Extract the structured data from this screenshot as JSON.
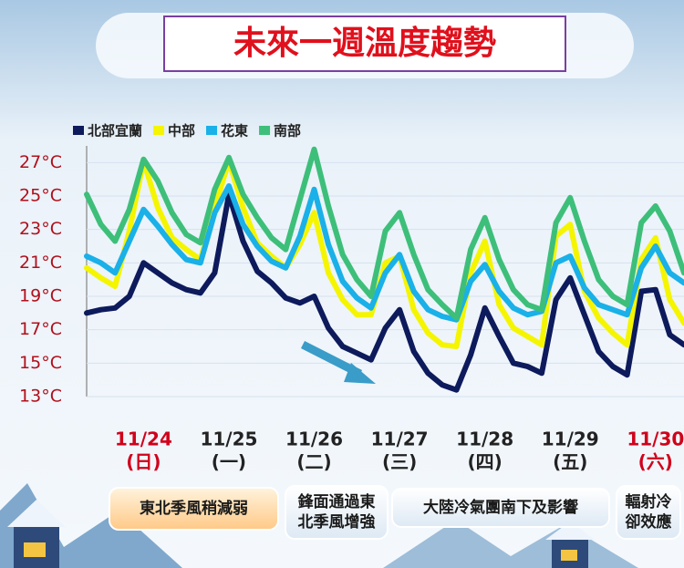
{
  "chart_data": {
    "type": "line",
    "title": "未來一週溫度趨勢",
    "categories": [
      null,
      null,
      null,
      null,
      "11/24",
      null,
      null,
      null,
      null,
      null,
      "11/25",
      null,
      null,
      null,
      null,
      null,
      "11/26",
      null,
      null,
      null,
      null,
      null,
      "11/27",
      null,
      null,
      null,
      null,
      null,
      "11/28",
      null,
      null,
      null,
      null,
      null,
      "11/29",
      null,
      null,
      null,
      null,
      null,
      "11/30",
      null,
      null
    ],
    "weekdays": [
      null,
      null,
      null,
      null,
      "(日)",
      null,
      null,
      null,
      null,
      null,
      "(一)",
      null,
      null,
      null,
      null,
      null,
      "(二)",
      null,
      null,
      null,
      null,
      null,
      "(三)",
      null,
      null,
      null,
      null,
      null,
      "(四)",
      null,
      null,
      null,
      null,
      null,
      "(五)",
      null,
      null,
      null,
      null,
      null,
      "(六)",
      null,
      null
    ],
    "x_label_colors": [
      null,
      null,
      null,
      null,
      "#d0021b",
      null,
      null,
      null,
      null,
      null,
      "#222222",
      null,
      null,
      null,
      null,
      null,
      "#222222",
      null,
      null,
      null,
      null,
      null,
      "#222222",
      null,
      null,
      null,
      null,
      null,
      "#222222",
      null,
      null,
      null,
      null,
      null,
      "#222222",
      null,
      null,
      null,
      null,
      null,
      "#d0021b",
      null,
      null
    ],
    "series": [
      {
        "name": "北部宜蘭",
        "color": "#0d1a5c",
        "values": [
          18.0,
          18.2,
          18.3,
          19.0,
          21.0,
          20.4,
          19.8,
          19.4,
          19.2,
          20.4,
          25.1,
          22.3,
          20.5,
          19.8,
          18.9,
          18.6,
          19.0,
          17.1,
          16.0,
          15.6,
          15.2,
          17.1,
          18.2,
          15.7,
          14.4,
          13.7,
          13.4,
          15.5,
          18.3,
          16.6,
          15.0,
          14.8,
          14.4,
          18.8,
          20.1,
          17.9,
          15.7,
          14.8,
          14.3,
          19.3,
          19.4,
          16.7,
          16.1
        ]
      },
      {
        "name": "中部",
        "color": "#f5f500",
        "values": [
          20.7,
          20.1,
          19.6,
          22.9,
          27.1,
          24.3,
          22.5,
          21.8,
          21.2,
          24.3,
          27.1,
          24.3,
          22.2,
          21.4,
          20.7,
          22.1,
          24.0,
          20.4,
          18.8,
          17.9,
          17.9,
          21.0,
          21.4,
          18.2,
          16.8,
          16.1,
          16.0,
          20.4,
          22.3,
          18.5,
          17.1,
          16.6,
          16.1,
          22.6,
          23.3,
          19.3,
          17.7,
          16.8,
          16.1,
          21.2,
          22.5,
          18.8,
          17.4
        ]
      },
      {
        "name": "花東",
        "color": "#1ab0e8",
        "values": [
          21.4,
          21.0,
          20.4,
          22.3,
          24.2,
          23.2,
          22.1,
          21.2,
          21.0,
          24.0,
          25.6,
          23.3,
          22.0,
          21.1,
          20.7,
          22.6,
          25.4,
          22.1,
          19.9,
          18.9,
          18.3,
          20.4,
          21.5,
          19.3,
          18.2,
          17.8,
          17.6,
          19.9,
          20.9,
          19.3,
          18.3,
          17.9,
          18.1,
          21.0,
          21.4,
          19.5,
          18.5,
          18.2,
          17.9,
          20.7,
          22.0,
          20.4,
          19.8
        ]
      },
      {
        "name": "南部",
        "color": "#3dbf7a",
        "values": [
          25.1,
          23.3,
          22.3,
          24.2,
          27.2,
          25.9,
          24.0,
          22.7,
          22.2,
          25.4,
          27.3,
          25.1,
          23.7,
          22.5,
          21.8,
          24.8,
          27.8,
          24.4,
          21.5,
          20.0,
          19.0,
          22.9,
          24.0,
          21.5,
          19.4,
          18.5,
          17.7,
          21.8,
          23.7,
          21.2,
          19.4,
          18.5,
          18.2,
          23.4,
          24.9,
          22.3,
          20.0,
          19.0,
          18.5,
          23.4,
          24.4,
          22.9,
          20.4
        ]
      }
    ],
    "ylim": [
      13,
      28
    ],
    "yticks": [
      {
        "value": 13,
        "label": "13°C"
      },
      {
        "value": 15,
        "label": "15°C"
      },
      {
        "value": 17,
        "label": "17°C"
      },
      {
        "value": 19,
        "label": "19°C"
      },
      {
        "value": 21,
        "label": "21°C"
      },
      {
        "value": 23,
        "label": "23°C"
      },
      {
        "value": 25,
        "label": "25°C"
      },
      {
        "value": 27,
        "label": "27°C"
      }
    ],
    "tick_color": "#b0101c",
    "grid": true,
    "annotations": [
      [
        "東北季風稍減弱"
      ],
      [
        "鋒面通過東",
        "北季風增強"
      ],
      [
        "大陸冷氣團南下及影響"
      ],
      [
        "輻射冷",
        "卻效應"
      ]
    ]
  }
}
